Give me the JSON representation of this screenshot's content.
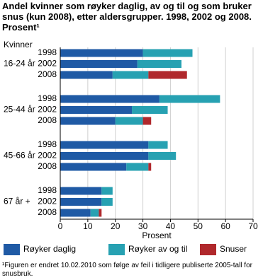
{
  "chart_data": {
    "type": "stacked-bar-horizontal",
    "title": "Andel kvinner som røyker daglig, av og til og som bruker snus (kun 2008), etter aldersgrupper. 1998, 2002 og 2008. Prosent¹",
    "subtitle": "Kvinner",
    "xlabel": "Prosent",
    "groups": [
      "16-24 år",
      "25-44 år",
      "45-66 år",
      "67 år +"
    ],
    "categories": [
      "1998",
      "2002",
      "2008",
      "1998",
      "2002",
      "2008",
      "1998",
      "2002",
      "2008",
      "1998",
      "2002",
      "2008"
    ],
    "series": [
      {
        "name": "Røyker daglig",
        "color": "#1f5aa5",
        "values": [
          30,
          28,
          19,
          36,
          26,
          20,
          32,
          32,
          24,
          15,
          15,
          11
        ]
      },
      {
        "name": "Røyker av og til",
        "color": "#27a1b2",
        "values": [
          18,
          16,
          13,
          22,
          13,
          10,
          7,
          10,
          8,
          4,
          4,
          3
        ]
      },
      {
        "name": "Snuser",
        "color": "#b0282c",
        "values": [
          null,
          null,
          14,
          null,
          null,
          3,
          null,
          null,
          1,
          null,
          null,
          1
        ]
      }
    ],
    "xlim": [
      0,
      70
    ],
    "xticks": [
      0,
      10,
      20,
      30,
      40,
      50,
      60,
      70
    ],
    "grid": true,
    "footnote": "¹Figuren er endret 10.02.2010 som følge av feil i tidligere publiserte 2005-tall for snusbruk."
  }
}
